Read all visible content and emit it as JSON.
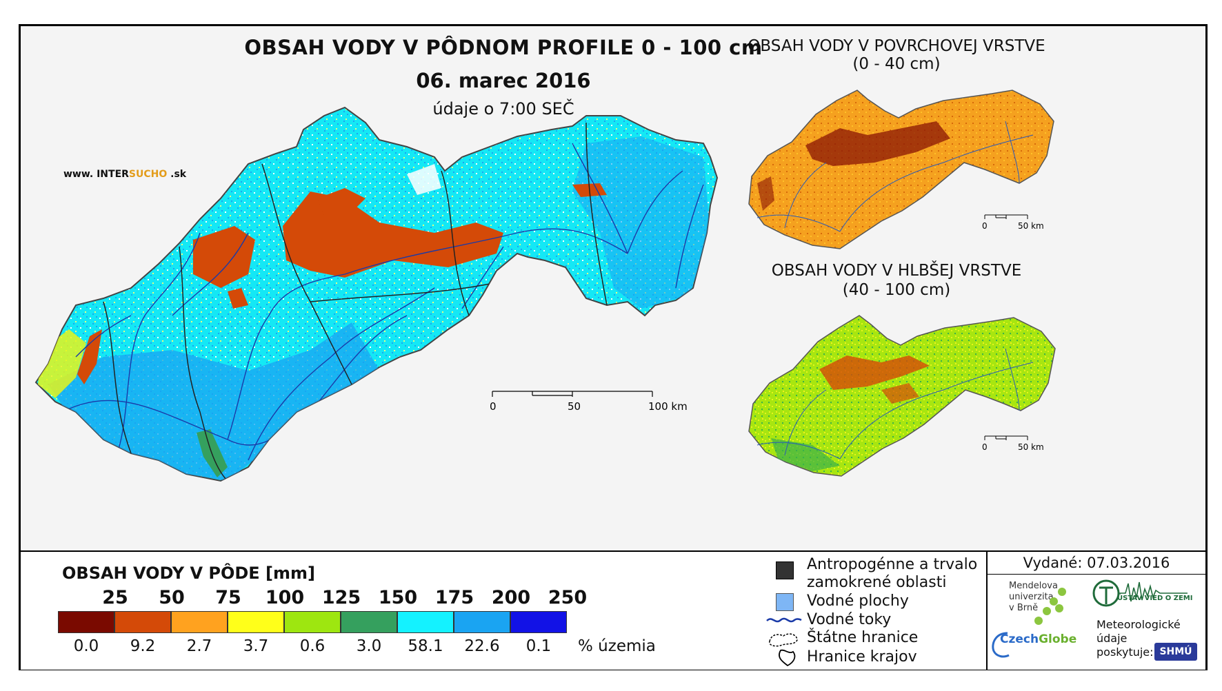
{
  "main_map": {
    "title": "OBSAH VODY V PÔDNOM PROFILE 0 - 100 cm",
    "date": "06. marec 2016",
    "time": "údaje o 7:00 SEČ",
    "website_prefix": "www. INTER",
    "website_accent": "SUCHO",
    "website_suffix": " .sk",
    "scalebar": {
      "labels": [
        "0",
        "50",
        "100 km"
      ]
    }
  },
  "inset_top": {
    "title": "OBSAH VODY V POVRCHOVEJ VRSTVE",
    "subtitle": "(0 - 40 cm)",
    "scalebar": {
      "labels": [
        "0",
        "50 km"
      ]
    }
  },
  "inset_bottom": {
    "title": "OBSAH VODY V HLBŠEJ VRSTVE",
    "subtitle": "(40 - 100 cm)",
    "scalebar": {
      "labels": [
        "0",
        "50 km"
      ]
    }
  },
  "legend": {
    "title": "OBSAH VODY V PÔDE [mm]",
    "class_breaks": [
      "25",
      "50",
      "75",
      "100",
      "125",
      "150",
      "175",
      "200",
      "250"
    ],
    "classes": [
      {
        "color": "#7a0a00",
        "percent": "0.0"
      },
      {
        "color": "#d44a08",
        "percent": "9.2"
      },
      {
        "color": "#ffa21f",
        "percent": "2.7"
      },
      {
        "color": "#ffff1a",
        "percent": "3.7"
      },
      {
        "color": "#9ee610",
        "percent": "0.6"
      },
      {
        "color": "#35a05e",
        "percent": "3.0"
      },
      {
        "color": "#14f2ff",
        "percent": "58.1"
      },
      {
        "color": "#1aa4f2",
        "percent": "22.6"
      },
      {
        "color": "#1212e6",
        "percent": "0.1"
      }
    ],
    "percent_unit": "% územia"
  },
  "map_legend": {
    "anthropogenic_line1": "Antropogénne a trvalo",
    "anthropogenic_line2": "zamokrené oblasti",
    "water_bodies": "Vodné plochy",
    "rivers": "Vodné toky",
    "state_border": "Štátne hranice",
    "region_border": "Hranice krajov"
  },
  "issued": "Vydané: 07.03.2016",
  "logos": {
    "mendel_line1": "Mendelova",
    "mendel_line2": "univerzita",
    "mendel_line3": "v Brně",
    "czechglobe_a": "Czech",
    "czechglobe_b": "Globe",
    "uvoz": "ÚSTAV VIED O ZEMI",
    "meteo_line1": "Meteorologické",
    "meteo_line2": "údaje",
    "meteo_line3": "poskytuje:",
    "shmu": "SHMÚ"
  }
}
